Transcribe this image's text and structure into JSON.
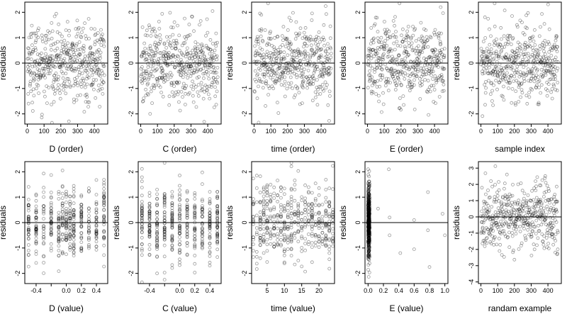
{
  "chart_data": [
    {
      "type": "scatter",
      "xlabel": "D (order)",
      "ylabel": "residuals",
      "xlim": [
        -15,
        480
      ],
      "ylim": [
        -2.4,
        2.4
      ],
      "xticks": [
        0,
        100,
        200,
        300,
        400
      ],
      "xtick_labels": [
        "0",
        "100",
        "200",
        "300",
        "400"
      ],
      "yticks": [
        -2,
        -1,
        0,
        1,
        2
      ],
      "ytick_labels": [
        "-2",
        "-1",
        "0",
        "1",
        "2"
      ],
      "ref_line_y": 0,
      "x_kind": "index",
      "n_points": 460,
      "y_sd": 0.75,
      "y_mean": 0
    },
    {
      "type": "scatter",
      "xlabel": "C (order)",
      "ylabel": "residuals",
      "xlim": [
        -15,
        480
      ],
      "ylim": [
        -2.4,
        2.4
      ],
      "xticks": [
        0,
        100,
        200,
        300,
        400
      ],
      "xtick_labels": [
        "0",
        "100",
        "200",
        "300",
        "400"
      ],
      "yticks": [
        -2,
        -1,
        0,
        1,
        2
      ],
      "ytick_labels": [
        "-2",
        "-1",
        "0",
        "1",
        "2"
      ],
      "ref_line_y": 0,
      "x_kind": "index",
      "n_points": 460,
      "y_sd": 0.75,
      "y_mean": 0
    },
    {
      "type": "scatter",
      "xlabel": "time (order)",
      "ylabel": "residuals",
      "xlim": [
        -15,
        480
      ],
      "ylim": [
        -2.4,
        2.4
      ],
      "xticks": [
        0,
        100,
        200,
        300,
        400
      ],
      "xtick_labels": [
        "0",
        "100",
        "200",
        "300",
        "400"
      ],
      "yticks": [
        -2,
        -1,
        0,
        1,
        2
      ],
      "ytick_labels": [
        "-2",
        "-1",
        "0",
        "1",
        "2"
      ],
      "ref_line_y": 0,
      "x_kind": "index",
      "n_points": 460,
      "y_sd": 0.75,
      "y_mean": 0
    },
    {
      "type": "scatter",
      "xlabel": "E (order)",
      "ylabel": "residuals",
      "xlim": [
        -15,
        480
      ],
      "ylim": [
        -2.4,
        2.4
      ],
      "xticks": [
        0,
        100,
        200,
        300,
        400
      ],
      "xtick_labels": [
        "0",
        "100",
        "200",
        "300",
        "400"
      ],
      "yticks": [
        -2,
        -1,
        0,
        1,
        2
      ],
      "ytick_labels": [
        "-2",
        "-1",
        "0",
        "1",
        "2"
      ],
      "ref_line_y": 0,
      "x_kind": "index",
      "n_points": 460,
      "y_sd": 0.75,
      "y_mean": 0
    },
    {
      "type": "scatter",
      "xlabel": "sample index",
      "ylabel": "residuals",
      "xlim": [
        -15,
        480
      ],
      "ylim": [
        -2.4,
        2.4
      ],
      "xticks": [
        0,
        100,
        200,
        300,
        400
      ],
      "xtick_labels": [
        "0",
        "100",
        "200",
        "300",
        "400"
      ],
      "yticks": [
        -2,
        -1,
        0,
        1,
        2
      ],
      "ytick_labels": [
        "-2",
        "-1",
        "0",
        "1",
        "2"
      ],
      "ref_line_y": 0,
      "x_kind": "index",
      "n_points": 460,
      "y_sd": 0.75,
      "y_mean": 0
    },
    {
      "type": "scatter",
      "xlabel": "D (value)",
      "ylabel": "residuals",
      "xlim": [
        -0.55,
        0.55
      ],
      "ylim": [
        -2.4,
        2.4
      ],
      "xticks": [
        -0.4,
        -0.2,
        0.0,
        0.2,
        0.4
      ],
      "xtick_labels": [
        "-0.4",
        "",
        "0.0",
        "0.2",
        "0.4"
      ],
      "yticks": [
        -2,
        -1,
        0,
        1,
        2
      ],
      "ytick_labels": [
        "-2",
        "-1",
        "0",
        "1",
        "2"
      ],
      "ref_line_y": 0,
      "x_kind": "discrete",
      "x_levels": [
        -0.5,
        -0.4,
        -0.3,
        -0.2,
        -0.1,
        -0.05,
        0,
        0.05,
        0.1,
        0.2,
        0.3,
        0.4,
        0.5
      ],
      "n_points": 460,
      "y_sd": 0.75,
      "y_mean": 0
    },
    {
      "type": "scatter",
      "xlabel": "C (value)",
      "ylabel": "residuals",
      "xlim": [
        -0.55,
        0.55
      ],
      "ylim": [
        -2.4,
        2.4
      ],
      "xticks": [
        -0.4,
        -0.2,
        0.0,
        0.2,
        0.4
      ],
      "xtick_labels": [
        "-0.4",
        "",
        "0.0",
        "0.2",
        "0.4"
      ],
      "yticks": [
        -2,
        -1,
        0,
        1,
        2
      ],
      "ytick_labels": [
        "-2",
        "-1",
        "0",
        "1",
        "2"
      ],
      "ref_line_y": 0,
      "x_kind": "discrete",
      "x_levels": [
        -0.5,
        -0.4,
        -0.3,
        -0.2,
        -0.1,
        0,
        0.1,
        0.2,
        0.3,
        0.4,
        0.5
      ],
      "n_points": 460,
      "y_sd": 0.75,
      "y_mean": 0
    },
    {
      "type": "scatter",
      "xlabel": "time (value)",
      "ylabel": "residuals",
      "xlim": [
        0.5,
        24.5
      ],
      "ylim": [
        -2.4,
        2.4
      ],
      "xticks": [
        5,
        10,
        15,
        20
      ],
      "xtick_labels": [
        "5",
        "10",
        "15",
        "20"
      ],
      "yticks": [
        -2,
        -1,
        0,
        1,
        2
      ],
      "ytick_labels": [
        "-2",
        "-1",
        "0",
        "1",
        "2"
      ],
      "ref_line_y": 0,
      "x_kind": "discrete",
      "x_levels": [
        1,
        2,
        3,
        4,
        5,
        6,
        7,
        8,
        9,
        10,
        11,
        12,
        13,
        14,
        15,
        16,
        17,
        18,
        19,
        20,
        21,
        22,
        23,
        24
      ],
      "n_points": 460,
      "y_sd": 0.75,
      "y_mean": 0
    },
    {
      "type": "scatter",
      "xlabel": "E (value)",
      "ylabel": "residuals",
      "xlim": [
        -0.04,
        1.04
      ],
      "ylim": [
        -2.4,
        2.4
      ],
      "xticks": [
        0.0,
        0.2,
        0.4,
        0.6,
        0.8,
        1.0
      ],
      "xtick_labels": [
        "0.0",
        "0.2",
        "0.4",
        "0.6",
        "0.8",
        "1.0"
      ],
      "yticks": [
        -2,
        -1,
        0,
        1,
        2
      ],
      "ytick_labels": [
        "-2",
        "-1",
        "0",
        "1",
        "2"
      ],
      "ref_line_y": 0,
      "x_kind": "skewed",
      "x_outliers": [
        [
          0.13,
          0.55
        ],
        [
          0.27,
          2.1
        ],
        [
          0.28,
          0.2
        ],
        [
          0.28,
          -0.5
        ],
        [
          0.42,
          -1.2
        ],
        [
          0.6,
          0.1
        ],
        [
          0.6,
          -1.05
        ],
        [
          0.78,
          1.2
        ],
        [
          0.78,
          -0.3
        ],
        [
          0.8,
          -1.75
        ],
        [
          0.97,
          0.35
        ],
        [
          1.0,
          -0.5
        ]
      ],
      "n_points": 460,
      "y_sd": 0.75,
      "y_mean": 0
    },
    {
      "type": "scatter",
      "xlabel": "randam example",
      "ylabel": "residuals",
      "xlim": [
        -15,
        480
      ],
      "ylim": [
        -4.1,
        3.4
      ],
      "xticks": [
        0,
        100,
        200,
        300,
        400
      ],
      "xtick_labels": [
        "0",
        "100",
        "200",
        "300",
        "400"
      ],
      "yticks": [
        -4,
        -3,
        -2,
        -1,
        0,
        1,
        2,
        3
      ],
      "ytick_labels": [
        "-4",
        "-3",
        "-2",
        "-1",
        "0",
        "1",
        "2",
        "3"
      ],
      "ref_line_y": 0,
      "x_kind": "index",
      "n_points": 460,
      "y_sd": 1.0,
      "y_mean": 0
    }
  ]
}
